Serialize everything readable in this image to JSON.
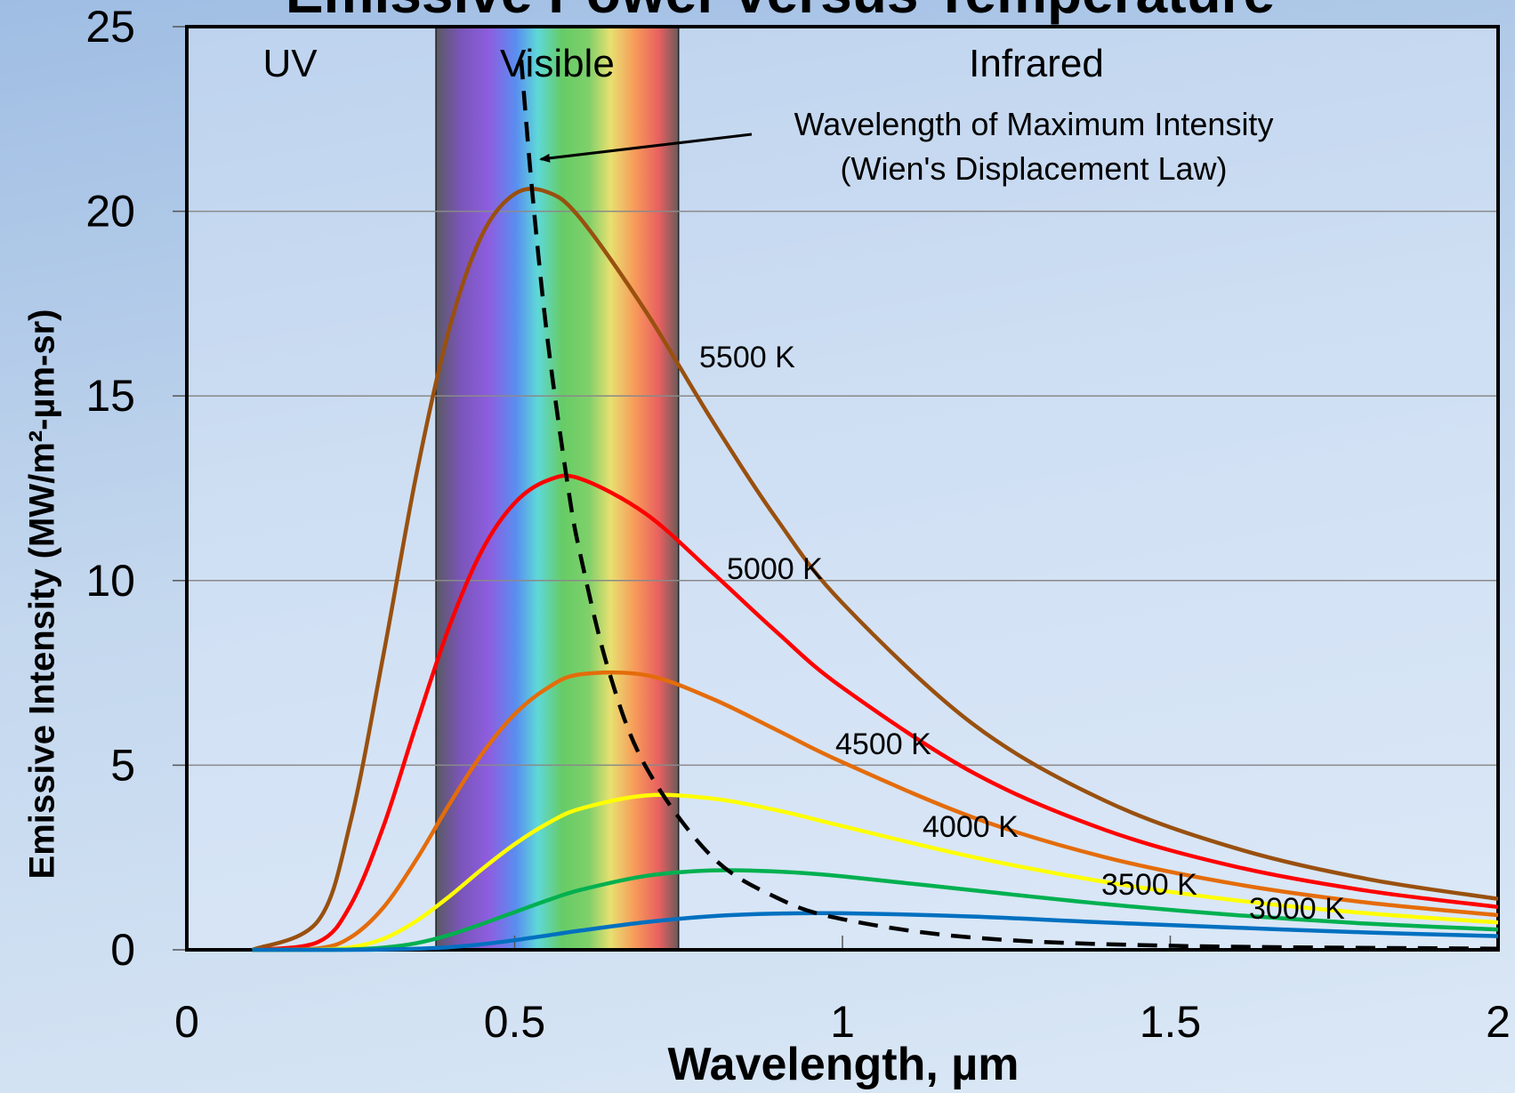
{
  "chart_data": {
    "type": "line",
    "title": "Emissive Power versus Temperature",
    "x_label": "Wavelength, µm",
    "y_label": "Emissive Intensity (MW/m²-µm-sr)",
    "xlim": [
      0,
      2
    ],
    "ylim": [
      0,
      25
    ],
    "xticks": [
      0,
      0.5,
      1,
      1.5,
      2
    ],
    "yticks": [
      0,
      5,
      10,
      15,
      20,
      25
    ],
    "grid": true,
    "regions": [
      {
        "label": "UV"
      },
      {
        "label": "Visible",
        "range": [
          0.38,
          0.75
        ]
      },
      {
        "label": "Infrared"
      }
    ],
    "annotations": [
      "Wavelength of Maximum Intensity",
      "(Wien's Displacement Law)"
    ],
    "x": [
      0.1,
      0.2,
      0.25,
      0.3,
      0.35,
      0.4,
      0.45,
      0.5,
      0.55,
      0.6,
      0.7,
      0.8,
      0.9,
      1.0,
      1.2,
      1.4,
      1.6,
      1.8,
      2.0
    ],
    "series": [
      {
        "name": "5500 K",
        "color": "#99500f",
        "values": [
          0,
          0.78,
          3.49,
          8.0,
          12.86,
          16.8,
          19.35,
          20.47,
          20.52,
          19.81,
          17.29,
          14.37,
          11.66,
          9.39,
          6.1,
          4.04,
          2.75,
          1.92,
          1.38
        ]
      },
      {
        "name": "5000 K",
        "color": "#ff0000",
        "values": [
          0,
          0.21,
          1.22,
          3.35,
          6.1,
          8.74,
          10.81,
          12.1,
          12.71,
          12.76,
          11.81,
          10.24,
          8.6,
          7.1,
          4.79,
          3.25,
          2.25,
          1.6,
          1.16
        ]
      },
      {
        "name": "4500 K",
        "color": "#e46c0a",
        "values": [
          0,
          0.04,
          0.34,
          1.15,
          2.44,
          3.93,
          5.3,
          6.38,
          7.09,
          7.46,
          7.44,
          6.81,
          5.95,
          5.08,
          3.58,
          2.51,
          1.78,
          1.28,
          0.94
        ]
      },
      {
        "name": "4000 K",
        "color": "#ffff00",
        "values": [
          0,
          0.01,
          0.07,
          0.3,
          0.78,
          1.44,
          2.18,
          2.86,
          3.42,
          3.82,
          4.18,
          4.1,
          3.78,
          3.35,
          2.51,
          1.84,
          1.34,
          0.99,
          0.74
        ]
      },
      {
        "name": "3500 K",
        "color": "#00b050",
        "values": [
          0,
          0,
          0.01,
          0.06,
          0.18,
          0.4,
          0.7,
          1.02,
          1.34,
          1.62,
          2.0,
          2.15,
          2.12,
          1.99,
          1.61,
          1.24,
          0.94,
          0.71,
          0.55
        ]
      },
      {
        "name": "3000 K",
        "color": "#0070c0",
        "values": [
          0,
          0,
          0,
          0.01,
          0.03,
          0.07,
          0.15,
          0.26,
          0.39,
          0.52,
          0.75,
          0.91,
          0.98,
          0.99,
          0.9,
          0.74,
          0.6,
          0.47,
          0.37
        ]
      }
    ],
    "wien": {
      "color": "#000000",
      "dashed": true,
      "x": [
        0.51,
        0.527,
        0.55,
        0.58,
        0.6,
        0.644,
        0.7,
        0.8,
        0.9,
        1.0,
        1.2,
        1.5,
        2.0
      ],
      "values": [
        24.1,
        20.5,
        16.56,
        12.7,
        10.72,
        7.53,
        4.96,
        2.54,
        1.41,
        0.83,
        0.33,
        0.11,
        0.03
      ]
    }
  }
}
